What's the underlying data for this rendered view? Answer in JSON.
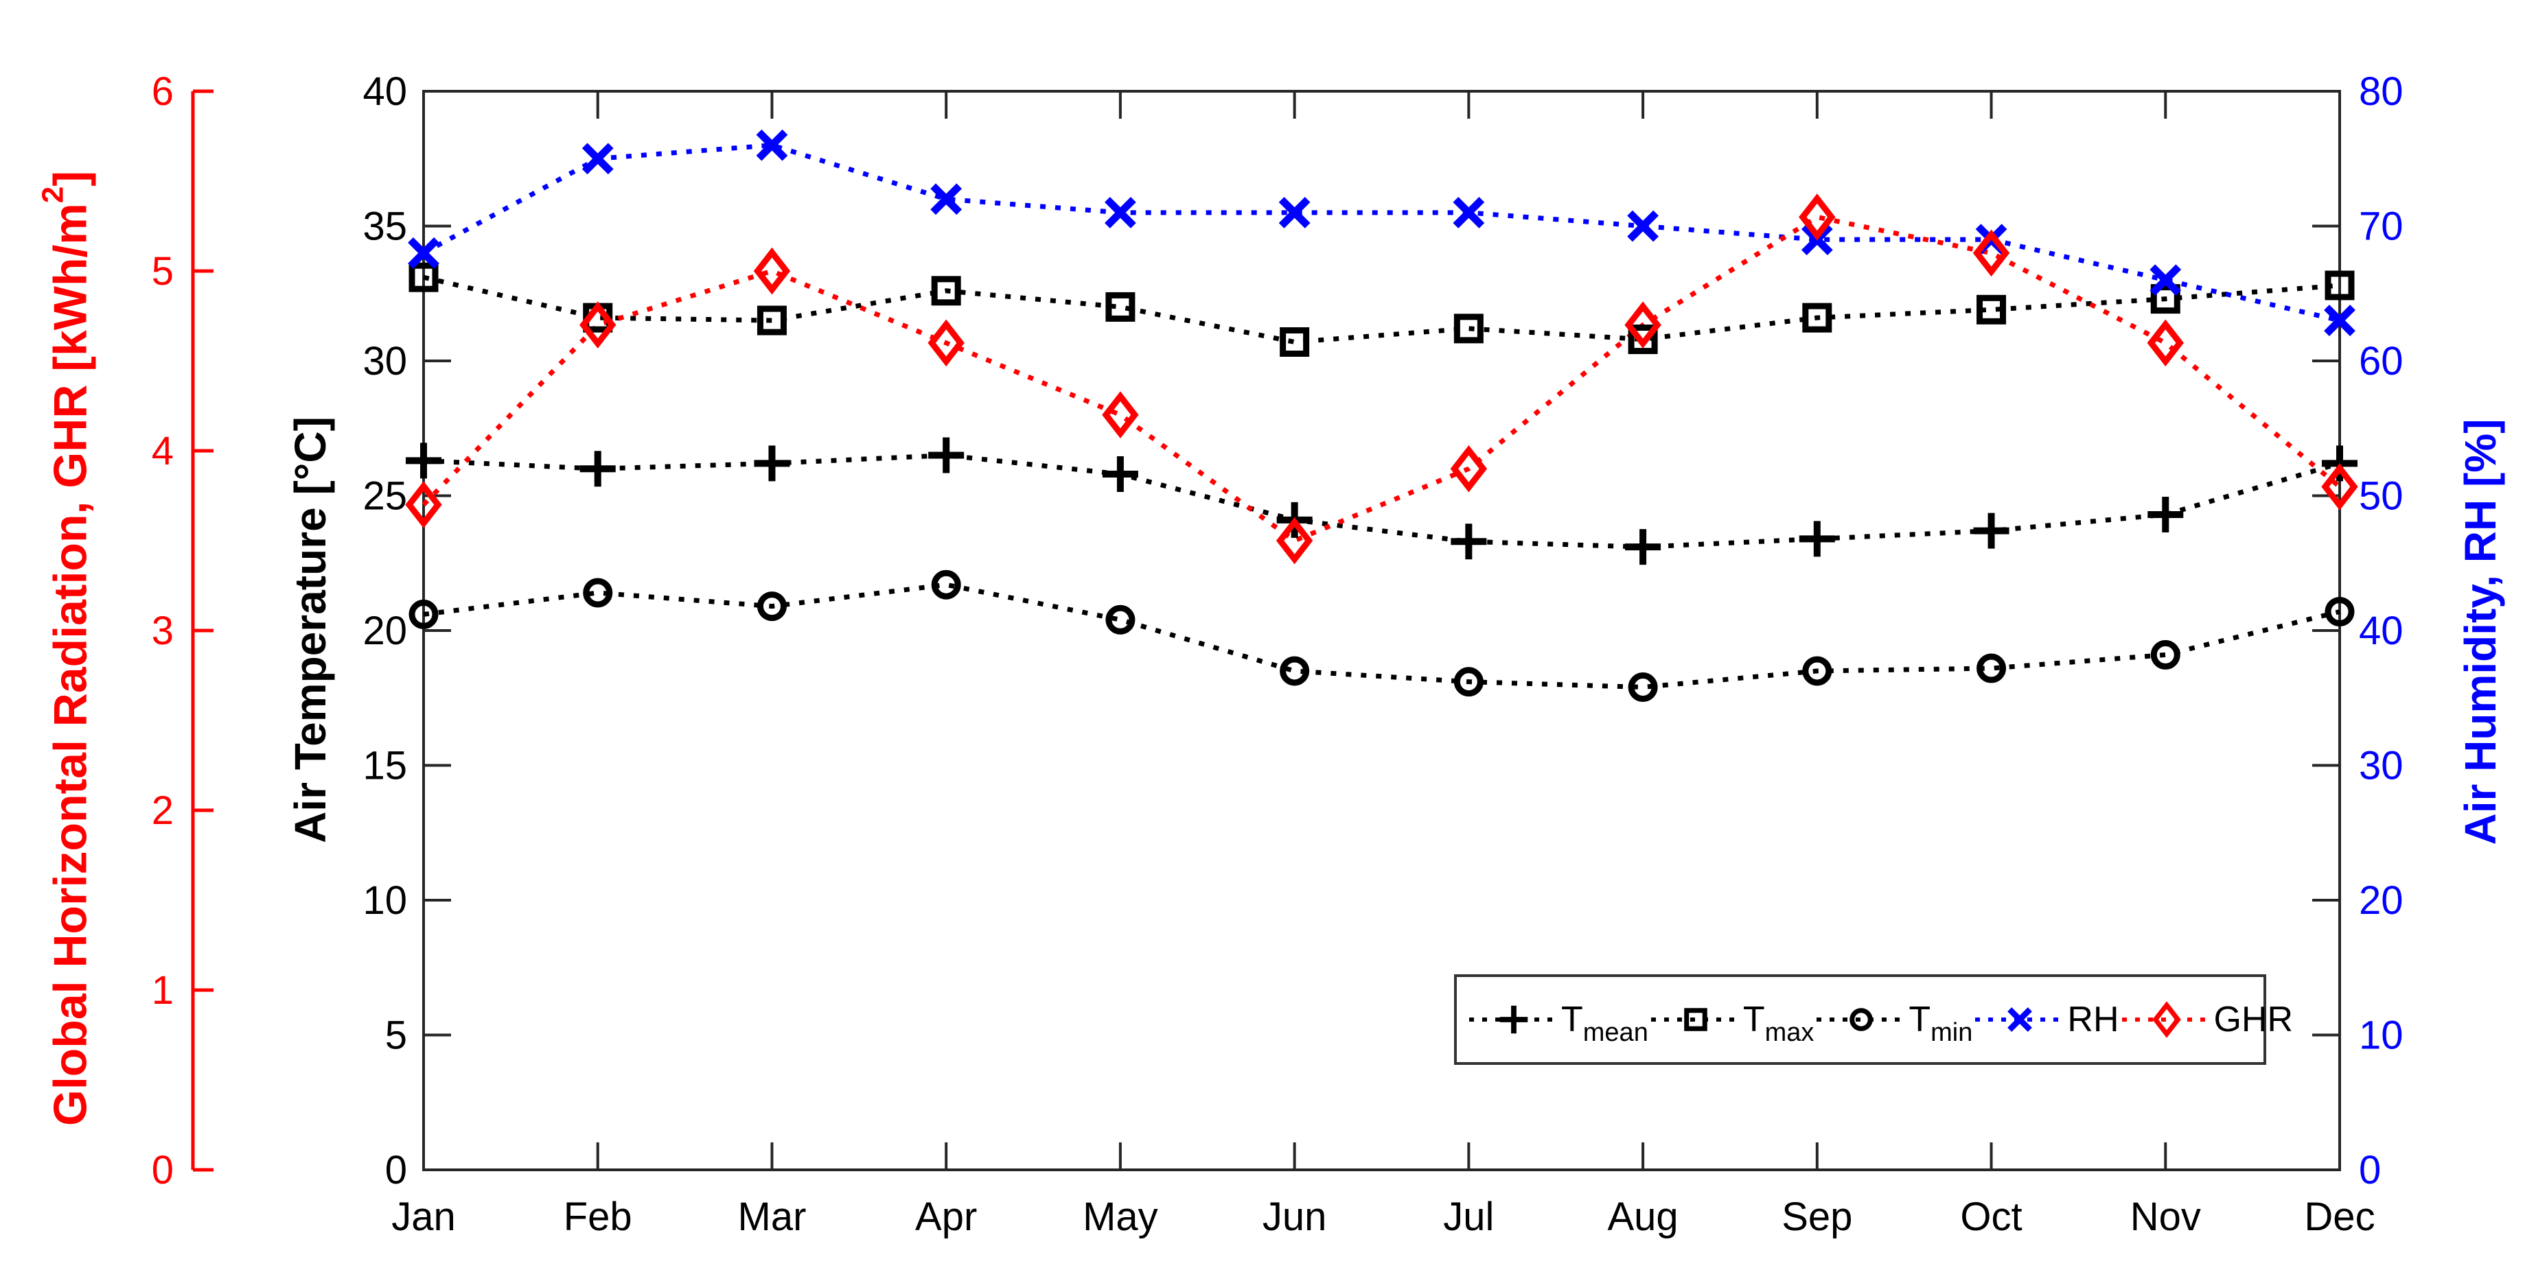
{
  "figure": {
    "background": "#ffffff",
    "axis_color": "#262626"
  },
  "axes": {
    "left_temp": {
      "label": "Air Temperature [°C]",
      "color": "#000000",
      "ticks": [
        0,
        5,
        10,
        15,
        20,
        25,
        30,
        35,
        40
      ],
      "range": [
        0,
        40
      ]
    },
    "left_ghr": {
      "label_prefix": "Global Horizontal Radiation, GHR [kWh/m",
      "label_sup": "2",
      "label_suffix": "]",
      "color": "#ff0000",
      "ticks": [
        0,
        1,
        2,
        3,
        4,
        5,
        6
      ],
      "range": [
        0,
        6
      ]
    },
    "right_rh": {
      "label": "Air Humidity, RH [%]",
      "color": "#0000ff",
      "ticks": [
        0,
        10,
        20,
        30,
        40,
        50,
        60,
        70,
        80
      ],
      "range": [
        0,
        80
      ]
    },
    "x": {
      "categories": [
        "Jan",
        "Feb",
        "Mar",
        "Apr",
        "May",
        "Jun",
        "Jul",
        "Aug",
        "Sep",
        "Oct",
        "Nov",
        "Dec"
      ]
    }
  },
  "legend": {
    "entries": [
      {
        "main": "T",
        "sub": "mean",
        "marker": "plus",
        "color": "#000000"
      },
      {
        "main": "T",
        "sub": "max",
        "marker": "square",
        "color": "#000000"
      },
      {
        "main": "T",
        "sub": "min",
        "marker": "circle",
        "color": "#000000"
      },
      {
        "main": "RH",
        "sub": "",
        "marker": "x",
        "color": "#0000ff"
      },
      {
        "main": "GHR",
        "sub": "",
        "marker": "diamond",
        "color": "#ff0000"
      }
    ]
  },
  "chart_data": {
    "type": "line",
    "line_style": "dotted",
    "title": "",
    "x": [
      "Jan",
      "Feb",
      "Mar",
      "Apr",
      "May",
      "Jun",
      "Jul",
      "Aug",
      "Sep",
      "Oct",
      "Nov",
      "Dec"
    ],
    "axis_ranges": {
      "temp": [
        0,
        40
      ],
      "rh": [
        0,
        80
      ],
      "ghr": [
        0,
        6
      ]
    },
    "grid": false,
    "legend_position": "inside-lower-right",
    "series": [
      {
        "name": "T_mean",
        "axis": "temp",
        "unit": "°C",
        "color": "#000000",
        "marker": "plus",
        "values": [
          26.3,
          26.0,
          26.2,
          26.5,
          25.8,
          24.1,
          23.3,
          23.1,
          23.4,
          23.7,
          24.3,
          26.2
        ]
      },
      {
        "name": "T_max",
        "axis": "temp",
        "unit": "°C",
        "color": "#000000",
        "marker": "square",
        "values": [
          33.1,
          31.6,
          31.5,
          32.6,
          32.0,
          30.7,
          31.2,
          30.8,
          31.6,
          31.9,
          32.3,
          32.8
        ]
      },
      {
        "name": "T_min",
        "axis": "temp",
        "unit": "°C",
        "color": "#000000",
        "marker": "circle",
        "values": [
          20.6,
          21.4,
          20.9,
          21.7,
          20.4,
          18.5,
          18.1,
          17.9,
          18.5,
          18.6,
          19.1,
          20.7
        ]
      },
      {
        "name": "RH",
        "axis": "rh",
        "unit": "%",
        "color": "#0000ff",
        "marker": "x",
        "values": [
          68,
          75,
          76,
          72,
          71,
          71,
          71,
          70,
          69,
          69,
          66,
          63
        ]
      },
      {
        "name": "GHR",
        "axis": "ghr",
        "unit": "kWh/m2",
        "color": "#ff0000",
        "marker": "diamond",
        "values": [
          3.7,
          4.7,
          5.0,
          4.6,
          4.2,
          3.5,
          3.9,
          4.7,
          5.3,
          5.1,
          4.6,
          3.8
        ]
      }
    ]
  }
}
